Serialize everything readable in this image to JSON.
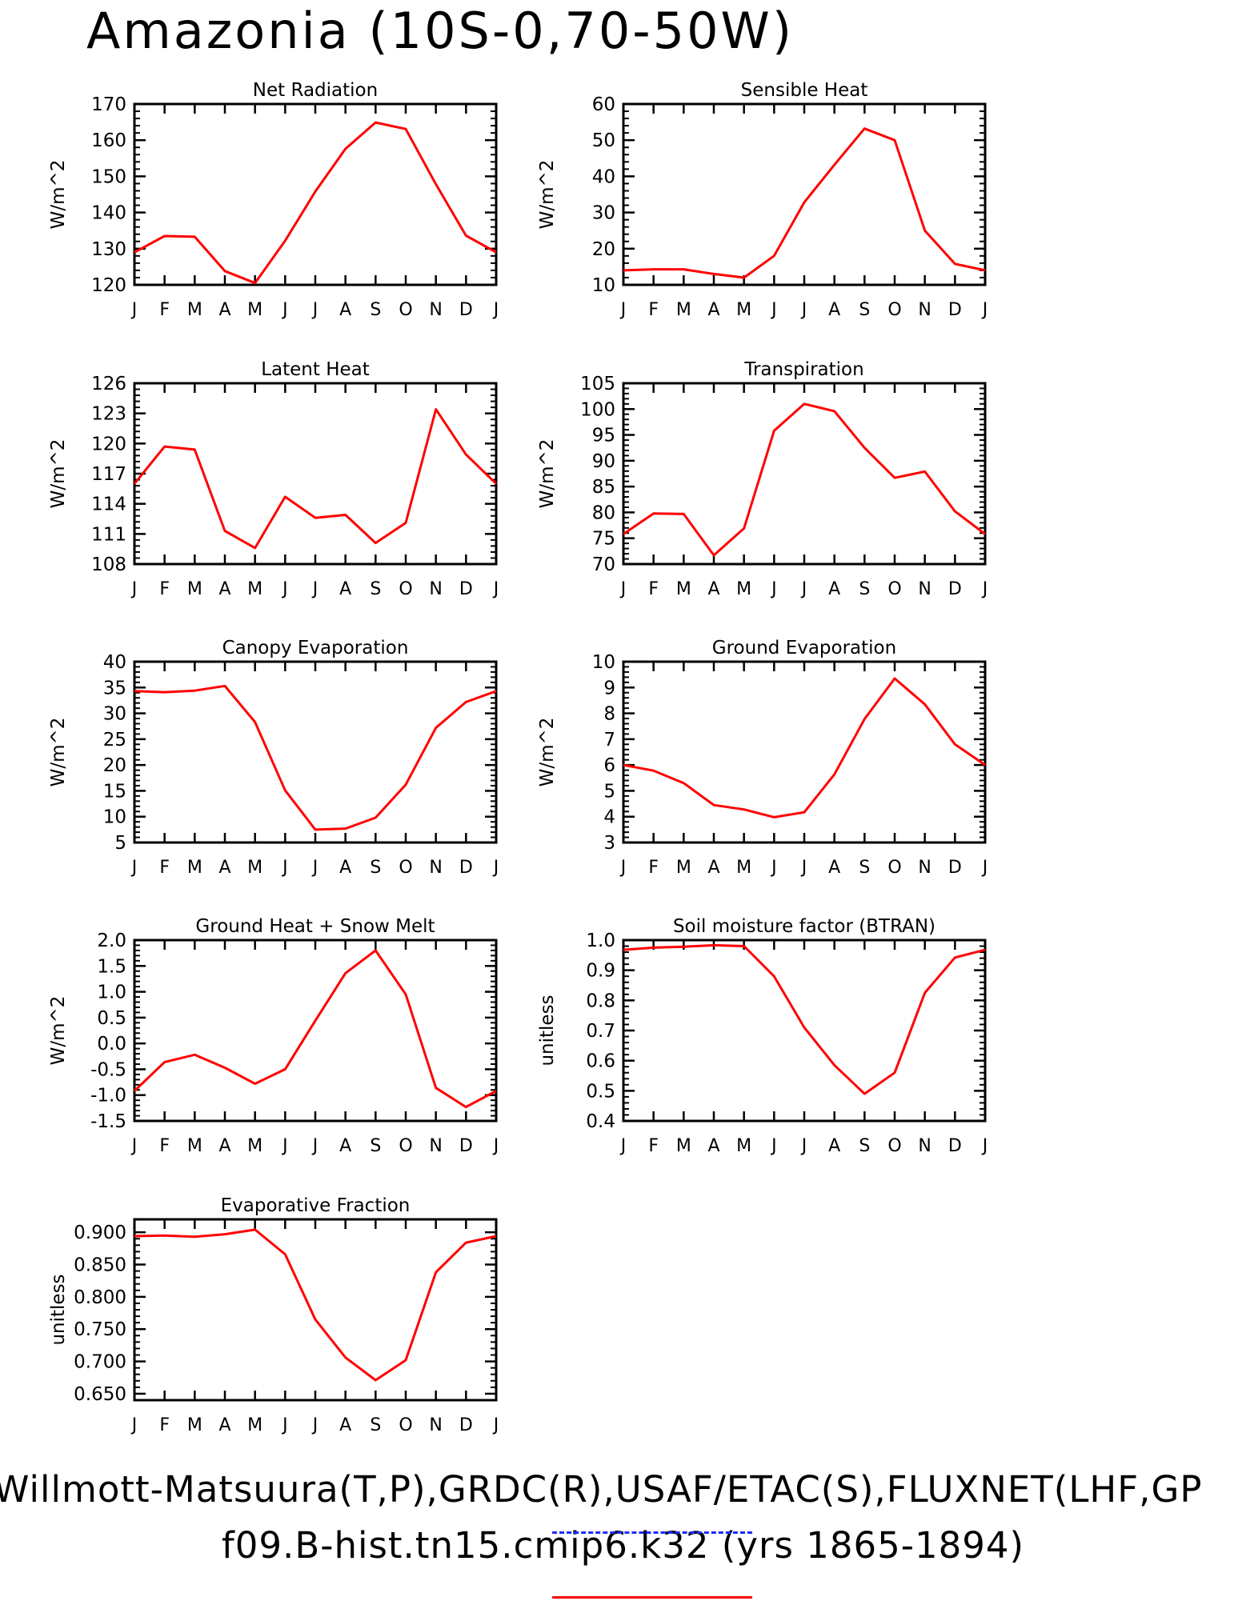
{
  "page": {
    "title": "Amazonia (10S-0,70-50W)",
    "footer_line_1": "Willmott-Matsuura(T,P),GRDC(R),USAF/ETAC(S),FLUXNET(LHF,GP",
    "footer_line_2": "f09.B-hist.tn15.cmip6.k32 (yrs 1865-1894)"
  },
  "style": {
    "line_color": "#ff0000",
    "obs_dash_color": "#1f2bff"
  },
  "months": [
    "J",
    "F",
    "M",
    "A",
    "M",
    "J",
    "J",
    "A",
    "S",
    "O",
    "N",
    "D",
    "J"
  ],
  "chart_data": [
    {
      "type": "line",
      "title": "Net Radiation",
      "ylabel": "W/m^2",
      "ylim": [
        120,
        170
      ],
      "yticks": [
        120,
        130,
        140,
        150,
        160,
        170
      ],
      "tick_decimals": 0,
      "x": [
        "J",
        "F",
        "M",
        "A",
        "M",
        "J",
        "J",
        "A",
        "S",
        "O",
        "N",
        "D",
        "J"
      ],
      "series": [
        {
          "values": [
            129.0,
            133.5,
            133.3,
            123.8,
            120.5,
            132.2,
            145.8,
            157.6,
            164.9,
            163.1,
            147.8,
            133.6,
            129.0
          ]
        }
      ]
    },
    {
      "type": "line",
      "title": "Sensible Heat",
      "ylabel": "W/m^2",
      "ylim": [
        10,
        60
      ],
      "yticks": [
        10,
        20,
        30,
        40,
        50,
        60
      ],
      "tick_decimals": 0,
      "x": [
        "J",
        "F",
        "M",
        "A",
        "M",
        "J",
        "J",
        "A",
        "S",
        "O",
        "N",
        "D",
        "J"
      ],
      "series": [
        {
          "values": [
            14.0,
            14.3,
            14.3,
            13.0,
            12.0,
            18.0,
            32.8,
            43.2,
            53.2,
            50.0,
            25.0,
            15.8,
            14.0
          ]
        }
      ]
    },
    {
      "type": "line",
      "title": "Latent Heat",
      "ylabel": "W/m^2",
      "ylim": [
        108,
        126
      ],
      "yticks": [
        108,
        111,
        114,
        117,
        120,
        123,
        126
      ],
      "tick_decimals": 0,
      "x": [
        "J",
        "F",
        "M",
        "A",
        "M",
        "J",
        "J",
        "A",
        "S",
        "O",
        "N",
        "D",
        "J"
      ],
      "series": [
        {
          "values": [
            116.0,
            119.7,
            119.4,
            111.3,
            109.6,
            114.7,
            112.6,
            112.9,
            110.1,
            112.1,
            123.4,
            118.9,
            116.0
          ]
        }
      ]
    },
    {
      "type": "line",
      "title": "Transpiration",
      "ylabel": "W/m^2",
      "ylim": [
        70,
        105
      ],
      "yticks": [
        70,
        75,
        80,
        85,
        90,
        95,
        100,
        105
      ],
      "tick_decimals": 0,
      "x": [
        "J",
        "F",
        "M",
        "A",
        "M",
        "J",
        "J",
        "A",
        "S",
        "O",
        "N",
        "D",
        "J"
      ],
      "series": [
        {
          "values": [
            75.8,
            79.8,
            79.7,
            71.7,
            76.9,
            95.8,
            101.0,
            99.6,
            92.5,
            86.7,
            87.9,
            80.2,
            75.8
          ]
        }
      ]
    },
    {
      "type": "line",
      "title": "Canopy Evaporation",
      "ylabel": "W/m^2",
      "ylim": [
        5,
        40
      ],
      "yticks": [
        5,
        10,
        15,
        20,
        25,
        30,
        35,
        40
      ],
      "tick_decimals": 0,
      "x": [
        "J",
        "F",
        "M",
        "A",
        "M",
        "J",
        "J",
        "A",
        "S",
        "O",
        "N",
        "D",
        "J"
      ],
      "series": [
        {
          "values": [
            34.3,
            34.1,
            34.4,
            35.3,
            28.3,
            15.1,
            7.5,
            7.7,
            9.8,
            16.2,
            27.2,
            32.2,
            34.3
          ]
        }
      ]
    },
    {
      "type": "line",
      "title": "Ground Evaporation",
      "ylabel": "W/m^2",
      "ylim": [
        3,
        10
      ],
      "yticks": [
        3,
        4,
        5,
        6,
        7,
        8,
        9,
        10
      ],
      "tick_decimals": 0,
      "x": [
        "J",
        "F",
        "M",
        "A",
        "M",
        "J",
        "J",
        "A",
        "S",
        "O",
        "N",
        "D",
        "J"
      ],
      "series": [
        {
          "values": [
            6.0,
            5.78,
            5.3,
            4.45,
            4.28,
            3.98,
            4.17,
            5.64,
            7.78,
            9.35,
            8.35,
            6.8,
            6.0
          ]
        }
      ]
    },
    {
      "type": "line",
      "title": "Ground Heat + Snow Melt",
      "ylabel": "W/m^2",
      "ylim": [
        -1.5,
        2.0
      ],
      "yticks": [
        -1.5,
        -1.0,
        -0.5,
        0.0,
        0.5,
        1.0,
        1.5,
        2.0
      ],
      "tick_decimals": 1,
      "x": [
        "J",
        "F",
        "M",
        "A",
        "M",
        "J",
        "J",
        "A",
        "S",
        "O",
        "N",
        "D",
        "J"
      ],
      "series": [
        {
          "values": [
            -0.92,
            -0.36,
            -0.22,
            -0.47,
            -0.78,
            -0.5,
            0.44,
            1.36,
            1.8,
            0.95,
            -0.86,
            -1.23,
            -0.92
          ]
        }
      ]
    },
    {
      "type": "line",
      "title": "Soil moisture factor (BTRAN)",
      "ylabel": "unitless",
      "ylim": [
        0.4,
        1.0
      ],
      "yticks": [
        0.4,
        0.5,
        0.6,
        0.7,
        0.8,
        0.9,
        1.0
      ],
      "tick_decimals": 1,
      "x": [
        "J",
        "F",
        "M",
        "A",
        "M",
        "J",
        "J",
        "A",
        "S",
        "O",
        "N",
        "D",
        "J"
      ],
      "series": [
        {
          "values": [
            0.968,
            0.975,
            0.978,
            0.983,
            0.98,
            0.88,
            0.71,
            0.585,
            0.49,
            0.56,
            0.825,
            0.942,
            0.968
          ]
        }
      ]
    },
    {
      "type": "line",
      "title": "Evaporative Fraction",
      "ylabel": "unitless",
      "ylim": [
        0.64,
        0.92
      ],
      "yticks": [
        0.65,
        0.7,
        0.75,
        0.8,
        0.85,
        0.9
      ],
      "tick_decimals": 3,
      "x": [
        "J",
        "F",
        "M",
        "A",
        "M",
        "J",
        "J",
        "A",
        "S",
        "O",
        "N",
        "D",
        "J"
      ],
      "series": [
        {
          "values": [
            0.894,
            0.895,
            0.893,
            0.897,
            0.904,
            0.866,
            0.765,
            0.706,
            0.671,
            0.702,
            0.838,
            0.884,
            0.894
          ]
        }
      ]
    }
  ]
}
